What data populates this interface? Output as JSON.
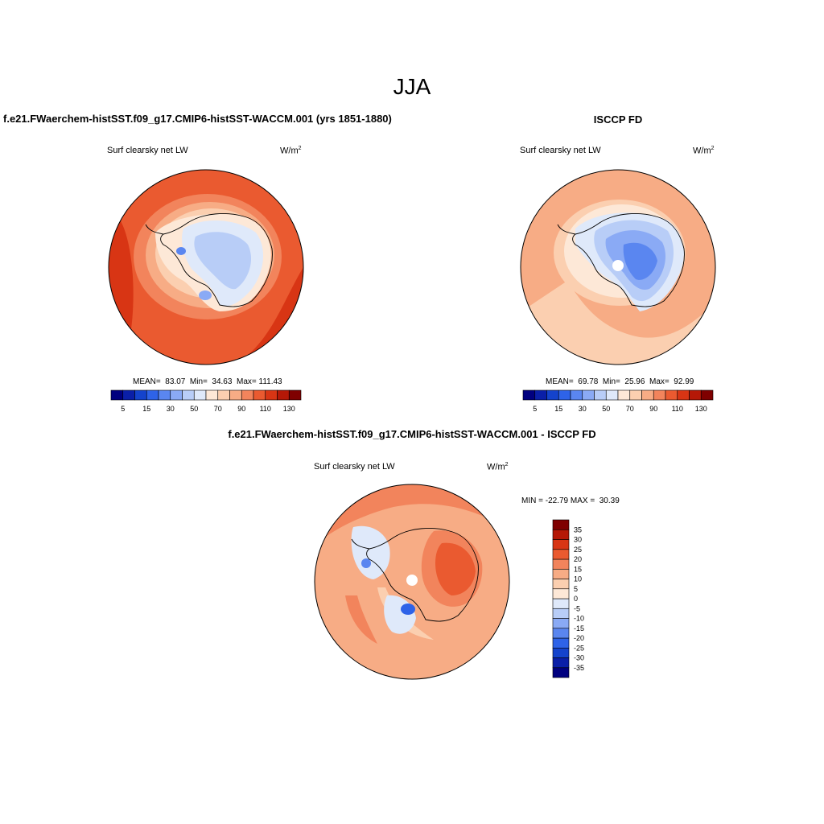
{
  "figure": {
    "season": "JJA"
  },
  "panels": [
    {
      "title": "f.e21.FWaerchem-histSST.f09_g17.CMIP6-histSST-WACCM.001 (yrs 1851-1880)",
      "variable": "Surf clearsky net LW",
      "units_base": "W/m",
      "units_exp": "2",
      "mean": "83.07",
      "min": "34.63",
      "max": "111.43",
      "mean_label": "MEAN=",
      "min_label": "Min=",
      "max_label": "Max="
    },
    {
      "title": "ISCCP FD",
      "variable": "Surf clearsky net LW",
      "units_base": "W/m",
      "units_exp": "2",
      "mean": "69.78",
      "min": "25.96",
      "max": "92.99",
      "mean_label": "MEAN=",
      "min_label": "Min=",
      "max_label": "Max="
    },
    {
      "title": "f.e21.FWaerchem-histSST.f09_g17.CMIP6-histSST-WACCM.001 - ISCCP FD",
      "variable": "Surf clearsky net LW",
      "units_base": "W/m",
      "units_exp": "2",
      "min_label": "MIN =",
      "min": "-22.79",
      "max_label": "MAX =",
      "max": "30.39"
    }
  ],
  "chart_data": [
    {
      "type": "heatmap",
      "projection": "south-polar-stereographic",
      "title": "f.e21.FWaerchem-histSST.f09_g17.CMIP6-histSST-WACCM.001 (yrs 1851-1880)",
      "variable": "Surf clearsky net LW",
      "units": "W/m2",
      "stats": {
        "mean": 83.07,
        "min": 34.63,
        "max": 111.43
      },
      "colorbar": {
        "orientation": "horizontal",
        "levels": [
          5,
          10,
          15,
          20,
          30,
          40,
          50,
          60,
          70,
          80,
          90,
          100,
          110,
          120,
          130
        ],
        "tick_labels": [
          "5",
          "15",
          "30",
          "50",
          "70",
          "90",
          "110",
          "130"
        ],
        "colors": [
          "#00007f",
          "#0a1fa8",
          "#1443cc",
          "#2e63e8",
          "#5a86f0",
          "#8aaaf5",
          "#b8cdf7",
          "#dfe9fa",
          "#fde8d7",
          "#fbcfb0",
          "#f7ac85",
          "#f2845c",
          "#ea5a30",
          "#d83514",
          "#b51807",
          "#7f0000"
        ]
      },
      "field_summary": "Negative-free field; lowest values (30-60, blues) over the East Antarctic plateau and West Antarctica, highest (100-111, red-orange) over the surrounding Southern Ocean, strongest on the western (left) sector."
    },
    {
      "type": "heatmap",
      "projection": "south-polar-stereographic",
      "title": "ISCCP FD",
      "variable": "Surf clearsky net LW",
      "units": "W/m2",
      "stats": {
        "mean": 69.78,
        "min": 25.96,
        "max": 92.99
      },
      "colorbar": {
        "orientation": "horizontal",
        "levels": [
          5,
          10,
          15,
          20,
          30,
          40,
          50,
          60,
          70,
          80,
          90,
          100,
          110,
          120,
          130
        ],
        "tick_labels": [
          "5",
          "15",
          "30",
          "50",
          "70",
          "90",
          "110",
          "130"
        ],
        "colors": [
          "#00007f",
          "#0a1fa8",
          "#1443cc",
          "#2e63e8",
          "#5a86f0",
          "#8aaaf5",
          "#b8cdf7",
          "#dfe9fa",
          "#fde8d7",
          "#fbcfb0",
          "#f7ac85",
          "#f2845c",
          "#ea5a30",
          "#d83514",
          "#b51807",
          "#7f0000"
        ]
      },
      "field_summary": "Lowest values (26-50, blues) over the Antarctic interior with a missing-data hole at the pole; ocean values mostly 70-90 (pale orange)."
    },
    {
      "type": "heatmap",
      "projection": "south-polar-stereographic",
      "title": "f.e21.FWaerchem-histSST.f09_g17.CMIP6-histSST-WACCM.001 - ISCCP FD",
      "variable": "Surf clearsky net LW",
      "units": "W/m2",
      "stats": {
        "min": -22.79,
        "max": 30.39
      },
      "colorbar": {
        "orientation": "vertical",
        "levels": [
          -35,
          -30,
          -25,
          -20,
          -15,
          -10,
          -5,
          0,
          5,
          10,
          15,
          20,
          25,
          30,
          35
        ],
        "tick_labels": [
          "35",
          "30",
          "25",
          "20",
          "15",
          "10",
          "5",
          "0",
          "-5",
          "-10",
          "-15",
          "-20",
          "-25",
          "-30",
          "-35"
        ],
        "colors": [
          "#00007f",
          "#0a1fa8",
          "#1443cc",
          "#2e63e8",
          "#5a86f0",
          "#8aaaf5",
          "#b8cdf7",
          "#dfe9fa",
          "#fde8d7",
          "#fbcfb0",
          "#f7ac85",
          "#f2845c",
          "#ea5a30",
          "#d83514",
          "#b51807",
          "#7f0000"
        ]
      },
      "field_summary": "Mostly positive differences (+5 to +30) over ocean and East Antarctica; negative differences (-5 to -20) near the Antarctic Peninsula and Ross Sea region; missing data at the pole."
    }
  ]
}
